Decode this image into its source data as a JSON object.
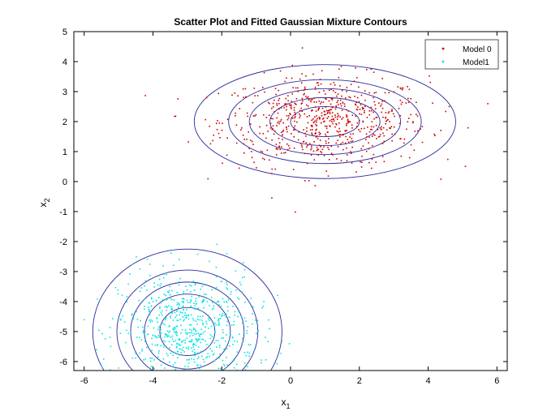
{
  "chart_data": {
    "type": "scatter",
    "title": "Scatter Plot and Fitted Gaussian Mixture Contours",
    "xlabel": "x",
    "xlabel_sub": "1",
    "ylabel": "x",
    "ylabel_sub": "2",
    "xlim": [
      -6.3,
      6.3
    ],
    "ylim": [
      -6.3,
      5
    ],
    "xticks": [
      -6,
      -4,
      -2,
      0,
      2,
      4,
      6
    ],
    "yticks": [
      -6,
      -5,
      -4,
      -3,
      -2,
      -1,
      0,
      1,
      2,
      3,
      4,
      5
    ],
    "grid": false,
    "legend_position": "top-right",
    "series": [
      {
        "name": "Model 0",
        "color": "#cc0000",
        "mean": [
          1,
          2
        ],
        "std": [
          1.5,
          0.75
        ],
        "count": 700
      },
      {
        "name": "Model1",
        "color": "#00e5e5",
        "mean": [
          -3,
          -5
        ],
        "std": [
          1,
          1
        ],
        "count": 700
      }
    ],
    "contours": [
      {
        "center": [
          1,
          2
        ],
        "radii_x": [
          1.0,
          1.6,
          2.2,
          2.8,
          3.8
        ],
        "radii_y": [
          0.5,
          0.8,
          1.1,
          1.4,
          1.9
        ],
        "color": "#2a2a9e"
      },
      {
        "center": [
          -3,
          -5
        ],
        "radii_x": [
          0.8,
          1.25,
          1.65,
          2.05,
          2.75
        ],
        "radii_y": [
          0.8,
          1.25,
          1.65,
          2.05,
          2.75
        ],
        "color": "#2a2a9e"
      }
    ]
  }
}
